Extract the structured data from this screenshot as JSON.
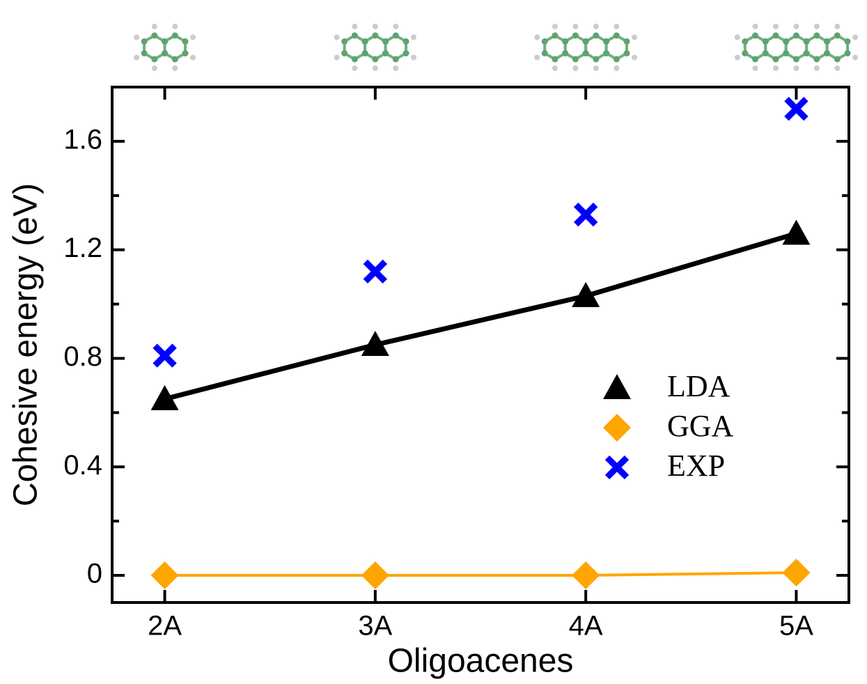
{
  "chart_data": {
    "type": "line",
    "x_label": "Oligoacenes",
    "y_label": "Cohesive energy (eV)",
    "categories": [
      "2A",
      "3A",
      "4A",
      "5A"
    ],
    "series": [
      {
        "name": "LDA",
        "color": "#000000",
        "marker": "triangle",
        "line": true,
        "values": [
          0.65,
          0.85,
          1.03,
          1.26
        ]
      },
      {
        "name": "GGA",
        "color": "#ffa500",
        "marker": "diamond",
        "line": true,
        "values": [
          0.0,
          0.0,
          0.0,
          0.01
        ]
      },
      {
        "name": "EXP",
        "color": "#0000ff",
        "marker": "x",
        "line": false,
        "values": [
          0.81,
          1.12,
          1.33,
          1.72
        ]
      }
    ],
    "ylim": [
      -0.1,
      1.8
    ],
    "yticks": [
      0,
      0.4,
      0.8,
      1.2,
      1.6
    ],
    "yminorticks": [
      0.2,
      0.6,
      1.0,
      1.4
    ],
    "legend": "right"
  }
}
